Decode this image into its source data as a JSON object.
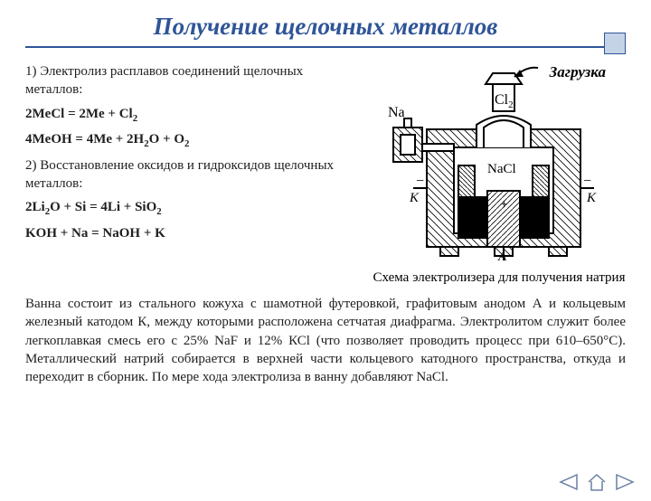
{
  "title": "Получение  щелочных металлов",
  "diagram": {
    "load_label": "Загрузка",
    "na_label": "Na",
    "cl2_label": "Cl",
    "melt_label": "NaCl",
    "k_left": "К",
    "k_right": "К",
    "anode_label": "А",
    "plus": "+",
    "minus1": "−",
    "minus2": "−",
    "colors": {
      "stroke": "#000000",
      "brick_fill": "#ffffff",
      "metal_fill": "#ffffff",
      "melt_fill": "#000000"
    }
  },
  "caption": "Схема электролизера для получения  натрия",
  "left": {
    "p1": "1) Электролиз расплавов соединений щелочных металлов:",
    "eq1_html": "2MeCl = 2Me + Cl<sub>2</sub>",
    "eq2_html": "4MeOH = 4Me + 2H<sub>2</sub>O + O<sub>2</sub>",
    "p2": "2) Восстановление оксидов и гидроксидов щелочных металлов:",
    "eq3_html": "2Li<sub>2</sub>O + Si = 4Li + SiO<sub>2</sub>",
    "eq4_html": "KOH + Na = NaOH + K"
  },
  "body": "Ванна состоит из стального кожуха с шамотной футеровкой, графитовым анодом А и кольцевым железный катодом К, между которыми расположена сетчатая диафрагма. Электролитом служит более легкоплавкая смесь его с 25% NaF и 12% КСl (что позволяет проводить процесс при 610–650°С). Металлический натрий собирается в верхней части кольцевого катодного пространства, откуда и переходит в сборник. По мере хода электролиза в ванну  добавляют NaCl.",
  "nav": {
    "prev": "nav-prev",
    "home": "nav-home",
    "next": "nav-next",
    "color": "#6b7fa3"
  }
}
